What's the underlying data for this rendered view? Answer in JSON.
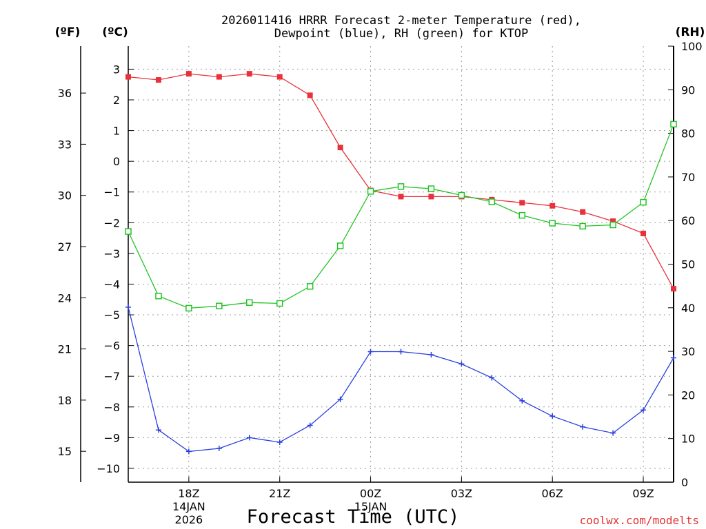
{
  "chart_data": {
    "type": "line",
    "title_line1": "2026011416 HRRR Forecast 2-meter Temperature (red),",
    "title_line2": "Dewpoint (blue), RH (green) for KTOP",
    "unit_f": "(ºF)",
    "unit_c": "(ºC)",
    "unit_rh": "(RH)",
    "xlabel": "Forecast Time (UTC)",
    "credit": "coolwx.com/modelts",
    "x_hours": [
      16,
      17,
      18,
      19,
      20,
      21,
      22,
      23,
      24,
      25,
      26,
      27,
      28,
      29,
      30,
      31,
      32,
      33,
      34
    ],
    "xlim": [
      16,
      34
    ],
    "x_ticks": [
      {
        "hour": 18,
        "label": "18Z",
        "sub1": "14JAN",
        "sub2": "2026"
      },
      {
        "hour": 21,
        "label": "21Z",
        "sub1": "",
        "sub2": ""
      },
      {
        "hour": 24,
        "label": "00Z",
        "sub1": "15JAN",
        "sub2": ""
      },
      {
        "hour": 27,
        "label": "03Z",
        "sub1": "",
        "sub2": ""
      },
      {
        "hour": 30,
        "label": "06Z",
        "sub1": "",
        "sub2": ""
      },
      {
        "hour": 33,
        "label": "09Z",
        "sub1": "",
        "sub2": ""
      }
    ],
    "ylim_c": [
      -10.45,
      3.75
    ],
    "yticks_c": [
      3,
      2,
      1,
      0,
      -1,
      -2,
      -3,
      -4,
      -5,
      -6,
      -7,
      -8,
      -9,
      -10
    ],
    "yticks_c_labels": [
      "3",
      "2",
      "1",
      "0",
      "−1",
      "−2",
      "−3",
      "−4",
      "−5",
      "−6",
      "−7",
      "−8",
      "−9",
      "−10"
    ],
    "yticks_f": [
      36,
      33,
      30,
      27,
      24,
      21,
      18,
      15
    ],
    "ylim_rh": [
      0,
      100
    ],
    "yticks_rh": [
      100,
      90,
      80,
      70,
      60,
      50,
      40,
      30,
      20,
      10,
      0
    ],
    "grid": true,
    "series": [
      {
        "name": "2-meter Temperature",
        "unit": "C",
        "color": "#e8313a",
        "marker": "filled-square",
        "values": [
          2.75,
          2.65,
          2.85,
          2.75,
          2.85,
          2.75,
          2.15,
          0.45,
          -0.95,
          -1.15,
          -1.15,
          -1.15,
          -1.25,
          -1.35,
          -1.45,
          -1.65,
          -1.95,
          -2.35,
          -4.15
        ]
      },
      {
        "name": "Dewpoint",
        "unit": "C",
        "color": "#2a3fe0",
        "marker": "plus",
        "values": [
          -4.75,
          -8.75,
          -9.45,
          -9.35,
          -9.0,
          -9.15,
          -8.6,
          -7.75,
          -6.2,
          -6.2,
          -6.3,
          -6.6,
          -7.05,
          -7.8,
          -8.3,
          -8.65,
          -8.85,
          -8.1,
          -6.4
        ]
      },
      {
        "name": "RH",
        "unit": "%",
        "color": "#22c425",
        "marker": "open-square",
        "values": [
          57.5,
          42.7,
          39.9,
          40.4,
          41.2,
          41.0,
          44.9,
          54.2,
          66.7,
          67.8,
          67.3,
          65.8,
          64.3,
          61.2,
          59.4,
          58.7,
          59.0,
          64.2,
          82.1
        ]
      }
    ]
  }
}
